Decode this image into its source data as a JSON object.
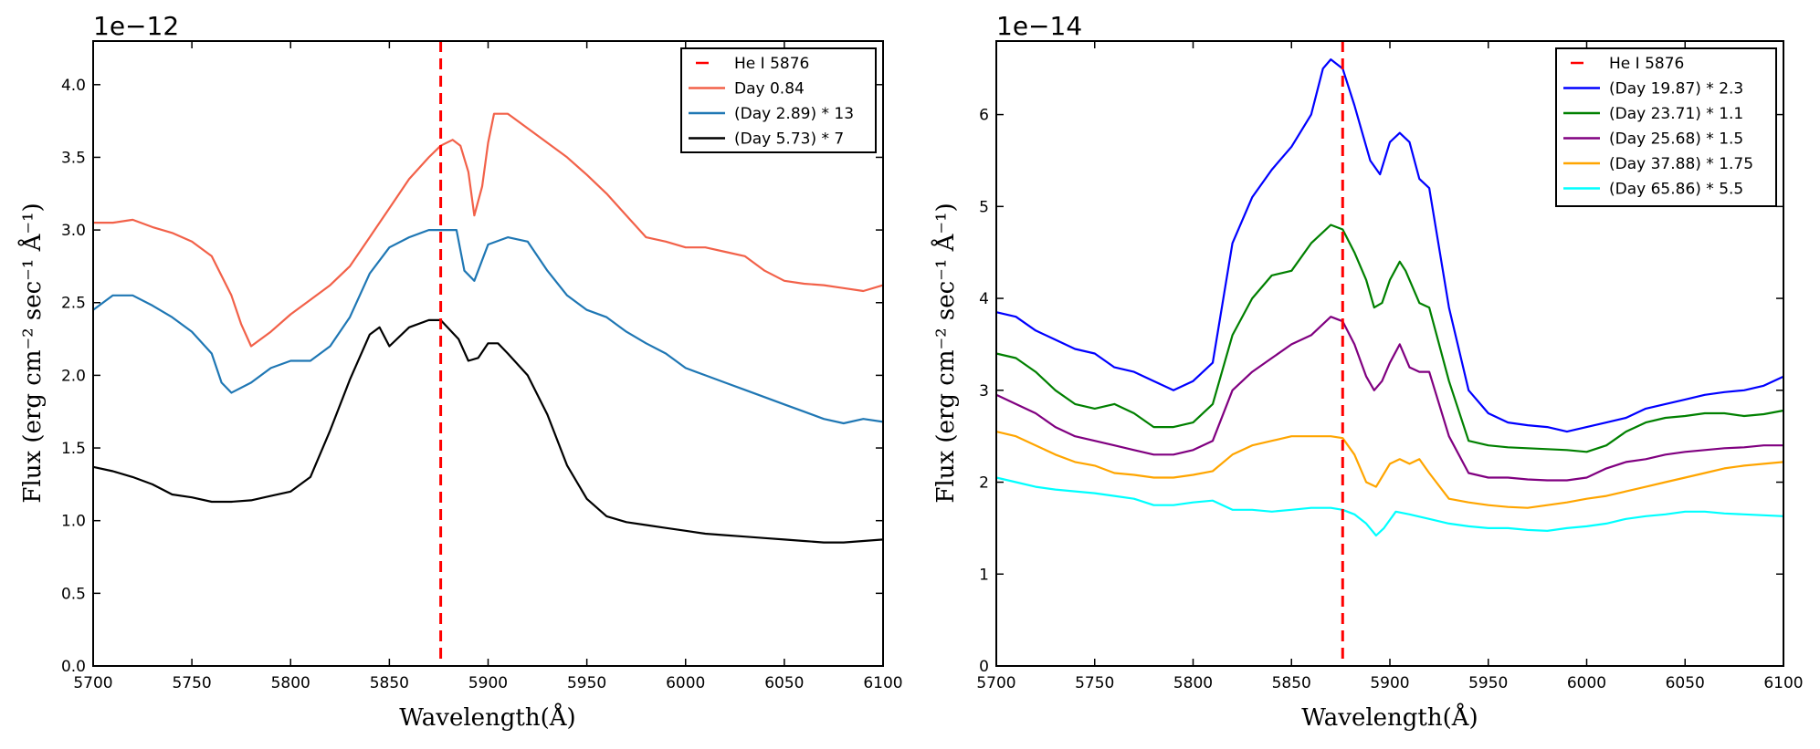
{
  "chart_data": [
    {
      "type": "line",
      "title": "",
      "scale_label": "1e−12",
      "xlabel": "Wavelength(Å)",
      "ylabel": "Flux (erg cm⁻² sec⁻¹ Å⁻¹)",
      "xlim": [
        5700,
        6100
      ],
      "ylim": [
        0,
        4.3
      ],
      "xticks": [
        "5700",
        "5750",
        "5800",
        "5850",
        "5900",
        "5950",
        "6000",
        "6050",
        "6100"
      ],
      "yticks": [
        "0.0",
        "0.5",
        "1.0",
        "1.5",
        "2.0",
        "2.5",
        "3.0",
        "3.5",
        "4.0"
      ],
      "legend_position": "top-right",
      "vline": {
        "label": "He I 5876",
        "x": 5876,
        "color": "#ff0000"
      },
      "series": [
        {
          "name": "Day 0.84",
          "color": "#f26149",
          "x": [
            5700,
            5710,
            5720,
            5730,
            5740,
            5750,
            5760,
            5770,
            5775,
            5780,
            5790,
            5800,
            5810,
            5820,
            5830,
            5840,
            5850,
            5860,
            5870,
            5876,
            5882,
            5886,
            5890,
            5893,
            5897,
            5900,
            5903,
            5910,
            5920,
            5930,
            5940,
            5950,
            5960,
            5970,
            5980,
            5990,
            6000,
            6010,
            6020,
            6030,
            6040,
            6050,
            6060,
            6070,
            6080,
            6090,
            6100
          ],
          "y": [
            3.05,
            3.05,
            3.07,
            3.02,
            2.98,
            2.92,
            2.82,
            2.55,
            2.35,
            2.2,
            2.3,
            2.42,
            2.52,
            2.62,
            2.75,
            2.95,
            3.15,
            3.35,
            3.5,
            3.58,
            3.62,
            3.58,
            3.4,
            3.1,
            3.3,
            3.6,
            3.8,
            3.8,
            3.7,
            3.6,
            3.5,
            3.38,
            3.25,
            3.1,
            2.95,
            2.92,
            2.88,
            2.88,
            2.85,
            2.82,
            2.72,
            2.65,
            2.63,
            2.62,
            2.6,
            2.58,
            2.62
          ]
        },
        {
          "name": "(Day 2.89) * 13",
          "color": "#1f77b4",
          "x": [
            5700,
            5710,
            5720,
            5730,
            5740,
            5750,
            5760,
            5765,
            5770,
            5780,
            5790,
            5800,
            5810,
            5820,
            5830,
            5840,
            5850,
            5860,
            5870,
            5876,
            5884,
            5888,
            5893,
            5900,
            5910,
            5920,
            5930,
            5940,
            5950,
            5960,
            5970,
            5980,
            5990,
            6000,
            6010,
            6020,
            6030,
            6040,
            6050,
            6060,
            6070,
            6080,
            6090,
            6100
          ],
          "y": [
            2.45,
            2.55,
            2.55,
            2.48,
            2.4,
            2.3,
            2.15,
            1.95,
            1.88,
            1.95,
            2.05,
            2.1,
            2.1,
            2.2,
            2.4,
            2.7,
            2.88,
            2.95,
            3.0,
            3.0,
            3.0,
            2.72,
            2.65,
            2.9,
            2.95,
            2.92,
            2.72,
            2.55,
            2.45,
            2.4,
            2.3,
            2.22,
            2.15,
            2.05,
            2.0,
            1.95,
            1.9,
            1.85,
            1.8,
            1.75,
            1.7,
            1.67,
            1.7,
            1.68
          ]
        },
        {
          "name": "(Day 5.73) * 7",
          "color": "#000000",
          "x": [
            5700,
            5710,
            5720,
            5730,
            5740,
            5750,
            5760,
            5770,
            5780,
            5790,
            5800,
            5810,
            5820,
            5830,
            5840,
            5845,
            5850,
            5860,
            5870,
            5876,
            5885,
            5890,
            5895,
            5900,
            5905,
            5910,
            5920,
            5930,
            5940,
            5950,
            5960,
            5970,
            5980,
            5990,
            6000,
            6010,
            6020,
            6030,
            6040,
            6050,
            6060,
            6070,
            6080,
            6090,
            6100
          ],
          "y": [
            1.37,
            1.34,
            1.3,
            1.25,
            1.18,
            1.16,
            1.13,
            1.13,
            1.14,
            1.17,
            1.2,
            1.3,
            1.62,
            1.97,
            2.28,
            2.33,
            2.2,
            2.33,
            2.38,
            2.38,
            2.25,
            2.1,
            2.12,
            2.22,
            2.22,
            2.15,
            2.0,
            1.73,
            1.38,
            1.15,
            1.03,
            0.99,
            0.97,
            0.95,
            0.93,
            0.91,
            0.9,
            0.89,
            0.88,
            0.87,
            0.86,
            0.85,
            0.85,
            0.86,
            0.87
          ]
        }
      ]
    },
    {
      "type": "line",
      "title": "",
      "scale_label": "1e−14",
      "xlabel": "Wavelength(Å)",
      "ylabel": "Flux (erg cm⁻² sec⁻¹ Å⁻¹)",
      "xlim": [
        5700,
        6100
      ],
      "ylim": [
        0,
        6.8
      ],
      "xticks": [
        "5700",
        "5750",
        "5800",
        "5850",
        "5900",
        "5950",
        "6000",
        "6050",
        "6100"
      ],
      "yticks": [
        "0",
        "1",
        "2",
        "3",
        "4",
        "5",
        "6"
      ],
      "legend_position": "top-right",
      "vline": {
        "label": "He I 5876",
        "x": 5876,
        "color": "#ff0000"
      },
      "series": [
        {
          "name": "(Day 19.87) * 2.3",
          "color": "#0000ff",
          "x": [
            5700,
            5710,
            5720,
            5730,
            5740,
            5750,
            5760,
            5770,
            5780,
            5790,
            5800,
            5810,
            5820,
            5830,
            5840,
            5850,
            5860,
            5866,
            5870,
            5876,
            5882,
            5886,
            5890,
            5895,
            5900,
            5905,
            5910,
            5915,
            5920,
            5930,
            5940,
            5950,
            5960,
            5970,
            5980,
            5990,
            6000,
            6010,
            6020,
            6030,
            6040,
            6050,
            6060,
            6070,
            6080,
            6090,
            6100
          ],
          "y": [
            3.85,
            3.8,
            3.65,
            3.55,
            3.45,
            3.4,
            3.25,
            3.2,
            3.1,
            3.0,
            3.1,
            3.3,
            4.6,
            5.1,
            5.4,
            5.65,
            6.0,
            6.5,
            6.6,
            6.5,
            6.1,
            5.8,
            5.5,
            5.35,
            5.7,
            5.8,
            5.7,
            5.3,
            5.2,
            3.9,
            3.0,
            2.75,
            2.65,
            2.62,
            2.6,
            2.55,
            2.6,
            2.65,
            2.7,
            2.8,
            2.85,
            2.9,
            2.95,
            2.98,
            3.0,
            3.05,
            3.15
          ]
        },
        {
          "name": "(Day 23.71) * 1.1",
          "color": "#008000",
          "x": [
            5700,
            5710,
            5720,
            5730,
            5740,
            5750,
            5760,
            5770,
            5780,
            5790,
            5800,
            5810,
            5820,
            5830,
            5840,
            5850,
            5860,
            5870,
            5876,
            5882,
            5888,
            5892,
            5896,
            5900,
            5905,
            5908,
            5915,
            5920,
            5930,
            5940,
            5950,
            5960,
            5970,
            5980,
            5990,
            6000,
            6010,
            6020,
            6030,
            6040,
            6050,
            6060,
            6070,
            6080,
            6090,
            6100
          ],
          "y": [
            3.4,
            3.35,
            3.2,
            3.0,
            2.85,
            2.8,
            2.85,
            2.75,
            2.6,
            2.6,
            2.65,
            2.85,
            3.6,
            4.0,
            4.25,
            4.3,
            4.6,
            4.8,
            4.75,
            4.5,
            4.2,
            3.9,
            3.95,
            4.2,
            4.4,
            4.3,
            3.95,
            3.9,
            3.1,
            2.45,
            2.4,
            2.38,
            2.37,
            2.36,
            2.35,
            2.33,
            2.4,
            2.55,
            2.65,
            2.7,
            2.72,
            2.75,
            2.75,
            2.72,
            2.74,
            2.78
          ]
        },
        {
          "name": "(Day 25.68) * 1.5",
          "color": "#800080",
          "x": [
            5700,
            5710,
            5720,
            5730,
            5740,
            5750,
            5760,
            5770,
            5780,
            5790,
            5800,
            5810,
            5820,
            5830,
            5840,
            5850,
            5860,
            5870,
            5876,
            5882,
            5888,
            5892,
            5896,
            5900,
            5905,
            5910,
            5915,
            5920,
            5930,
            5940,
            5950,
            5960,
            5970,
            5980,
            5990,
            6000,
            6010,
            6020,
            6030,
            6040,
            6050,
            6060,
            6070,
            6080,
            6090,
            6100
          ],
          "y": [
            2.95,
            2.85,
            2.75,
            2.6,
            2.5,
            2.45,
            2.4,
            2.35,
            2.3,
            2.3,
            2.35,
            2.45,
            3.0,
            3.2,
            3.35,
            3.5,
            3.6,
            3.8,
            3.75,
            3.5,
            3.15,
            3.0,
            3.1,
            3.3,
            3.5,
            3.25,
            3.2,
            3.2,
            2.5,
            2.1,
            2.05,
            2.05,
            2.03,
            2.02,
            2.02,
            2.05,
            2.15,
            2.22,
            2.25,
            2.3,
            2.33,
            2.35,
            2.37,
            2.38,
            2.4,
            2.4
          ]
        },
        {
          "name": "(Day 37.88) * 1.75",
          "color": "#ffa500",
          "x": [
            5700,
            5710,
            5720,
            5730,
            5740,
            5750,
            5760,
            5770,
            5780,
            5790,
            5800,
            5810,
            5820,
            5830,
            5840,
            5850,
            5860,
            5870,
            5876,
            5882,
            5888,
            5893,
            5900,
            5905,
            5910,
            5915,
            5920,
            5930,
            5940,
            5950,
            5960,
            5970,
            5980,
            5990,
            6000,
            6010,
            6020,
            6030,
            6040,
            6050,
            6060,
            6070,
            6080,
            6090,
            6100
          ],
          "y": [
            2.55,
            2.5,
            2.4,
            2.3,
            2.22,
            2.18,
            2.1,
            2.08,
            2.05,
            2.05,
            2.08,
            2.12,
            2.3,
            2.4,
            2.45,
            2.5,
            2.5,
            2.5,
            2.48,
            2.3,
            2.0,
            1.95,
            2.2,
            2.25,
            2.2,
            2.25,
            2.1,
            1.82,
            1.78,
            1.75,
            1.73,
            1.72,
            1.75,
            1.78,
            1.82,
            1.85,
            1.9,
            1.95,
            2.0,
            2.05,
            2.1,
            2.15,
            2.18,
            2.2,
            2.22
          ]
        },
        {
          "name": "(Day 65.86) * 5.5",
          "color": "#00ffff",
          "x": [
            5700,
            5710,
            5720,
            5730,
            5740,
            5750,
            5760,
            5770,
            5780,
            5790,
            5800,
            5810,
            5820,
            5830,
            5840,
            5850,
            5860,
            5870,
            5876,
            5882,
            5888,
            5893,
            5897,
            5903,
            5910,
            5920,
            5930,
            5940,
            5950,
            5960,
            5970,
            5980,
            5990,
            6000,
            6010,
            6020,
            6030,
            6040,
            6050,
            6060,
            6070,
            6080,
            6090,
            6100
          ],
          "y": [
            2.05,
            2.0,
            1.95,
            1.92,
            1.9,
            1.88,
            1.85,
            1.82,
            1.75,
            1.75,
            1.78,
            1.8,
            1.7,
            1.7,
            1.68,
            1.7,
            1.72,
            1.72,
            1.7,
            1.65,
            1.55,
            1.42,
            1.5,
            1.68,
            1.65,
            1.6,
            1.55,
            1.52,
            1.5,
            1.5,
            1.48,
            1.47,
            1.5,
            1.52,
            1.55,
            1.6,
            1.63,
            1.65,
            1.68,
            1.68,
            1.66,
            1.65,
            1.64,
            1.63
          ]
        }
      ]
    }
  ]
}
